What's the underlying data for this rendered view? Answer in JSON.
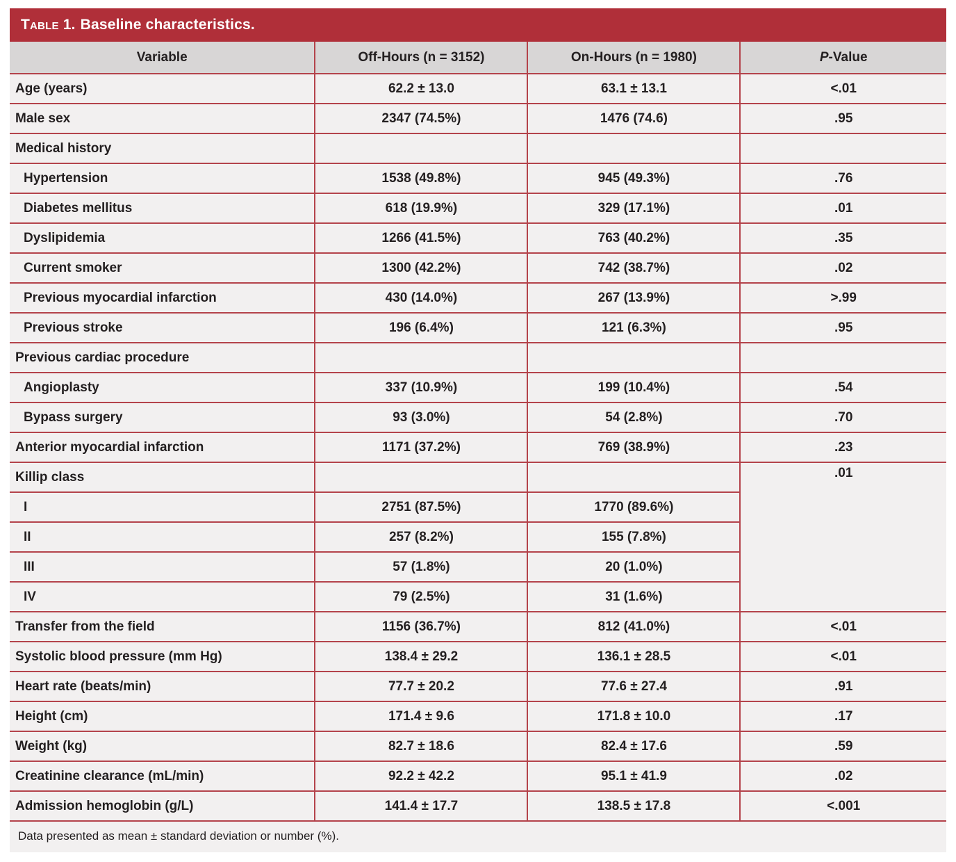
{
  "title": {
    "label": "Table 1.",
    "rest": "Baseline characteristics."
  },
  "columns": {
    "variable": "Variable",
    "off_hours": "Off-Hours (n = 3152)",
    "on_hours": "On-Hours (n = 1980)",
    "p_italic": "P",
    "p_rest": "-Value"
  },
  "rows": [
    {
      "label": "Age (years)",
      "indent": 0,
      "off": "62.2 ± 13.0",
      "on": "63.1 ± 13.1",
      "p": "<.01"
    },
    {
      "label": "Male sex",
      "indent": 0,
      "off": "2347 (74.5%)",
      "on": "1476 (74.6)",
      "p": ".95"
    },
    {
      "label": "Medical history",
      "indent": 0,
      "off": "",
      "on": "",
      "p": ""
    },
    {
      "label": "Hypertension",
      "indent": 1,
      "off": "1538 (49.8%)",
      "on": "945 (49.3%)",
      "p": ".76"
    },
    {
      "label": "Diabetes mellitus",
      "indent": 1,
      "off": "618 (19.9%)",
      "on": "329 (17.1%)",
      "p": ".01"
    },
    {
      "label": "Dyslipidemia",
      "indent": 1,
      "off": "1266 (41.5%)",
      "on": "763 (40.2%)",
      "p": ".35"
    },
    {
      "label": "Current smoker",
      "indent": 1,
      "off": "1300 (42.2%)",
      "on": "742 (38.7%)",
      "p": ".02"
    },
    {
      "label": "Previous myocardial infarction",
      "indent": 1,
      "off": "430 (14.0%)",
      "on": "267 (13.9%)",
      "p": ">.99"
    },
    {
      "label": "Previous stroke",
      "indent": 1,
      "off": "196 (6.4%)",
      "on": "121 (6.3%)",
      "p": ".95"
    },
    {
      "label": "Previous cardiac procedure",
      "indent": 0,
      "off": "",
      "on": "",
      "p": ""
    },
    {
      "label": "Angioplasty",
      "indent": 1,
      "off": "337 (10.9%)",
      "on": "199 (10.4%)",
      "p": ".54"
    },
    {
      "label": "Bypass surgery",
      "indent": 1,
      "off": "93 (3.0%)",
      "on": "54 (2.8%)",
      "p": ".70"
    },
    {
      "label": "Anterior myocardial infarction",
      "indent": 0,
      "off": "1171 (37.2%)",
      "on": "769 (38.9%)",
      "p": ".23"
    },
    {
      "label": "Killip class",
      "indent": 0,
      "off": "",
      "on": "",
      "p": ".01",
      "p_rowspan": 5
    },
    {
      "label": "I",
      "indent": 1,
      "off": "2751 (87.5%)",
      "on": "1770 (89.6%)",
      "p_merged": true
    },
    {
      "label": "II",
      "indent": 1,
      "off": "257 (8.2%)",
      "on": "155 (7.8%)",
      "p_merged": true
    },
    {
      "label": "III",
      "indent": 1,
      "off": "57 (1.8%)",
      "on": "20 (1.0%)",
      "p_merged": true
    },
    {
      "label": "IV",
      "indent": 1,
      "off": "79 (2.5%)",
      "on": "31 (1.6%)",
      "p_merged": true
    },
    {
      "label": "Transfer from the field",
      "indent": 0,
      "off": "1156 (36.7%)",
      "on": "812 (41.0%)",
      "p": "<.01"
    },
    {
      "label": "Systolic blood pressure (mm Hg)",
      "indent": 0,
      "off": "138.4 ± 29.2",
      "on": "136.1 ± 28.5",
      "p": "<.01"
    },
    {
      "label": "Heart rate (beats/min)",
      "indent": 0,
      "off": "77.7 ± 20.2",
      "on": "77.6 ± 27.4",
      "p": ".91"
    },
    {
      "label": "Height (cm)",
      "indent": 0,
      "off": "171.4 ± 9.6",
      "on": "171.8 ± 10.0",
      "p": ".17"
    },
    {
      "label": "Weight (kg)",
      "indent": 0,
      "off": "82.7 ± 18.6",
      "on": "82.4 ± 17.6",
      "p": ".59"
    },
    {
      "label": "Creatinine clearance (mL/min)",
      "indent": 0,
      "off": "92.2 ± 42.2",
      "on": "95.1 ± 41.9",
      "p": ".02"
    },
    {
      "label": "Admission hemoglobin (g/L)",
      "indent": 0,
      "off": "141.4 ± 17.7",
      "on": "138.5 ± 17.8",
      "p": "<.001"
    }
  ],
  "footnote": "Data presented as mean ± standard deviation or number (%).",
  "colors": {
    "title_bar": "#b02f39",
    "border": "#b4434b",
    "header_bg": "#d8d6d6",
    "row_bg": "#f2f0f0",
    "text": "#231f20",
    "title_text": "#ffffff"
  }
}
